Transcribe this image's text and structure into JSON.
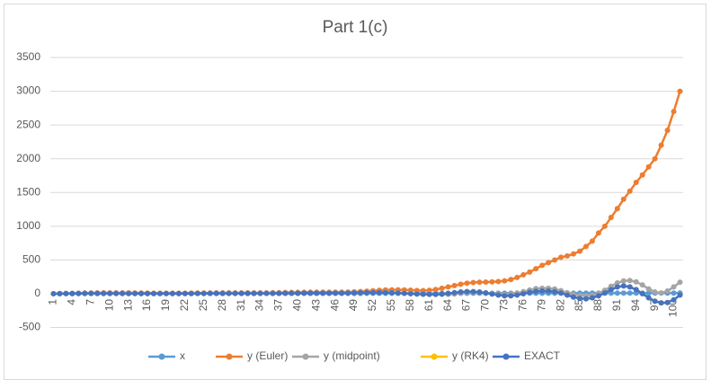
{
  "chart_data": {
    "type": "line",
    "title": "Part 1(c)",
    "categories": [
      1,
      null,
      null,
      4,
      null,
      null,
      7,
      null,
      null,
      10,
      null,
      null,
      13,
      null,
      null,
      16,
      null,
      null,
      19,
      null,
      null,
      22,
      null,
      null,
      25,
      null,
      null,
      28,
      null,
      null,
      31,
      null,
      null,
      34,
      null,
      null,
      37,
      null,
      null,
      40,
      null,
      null,
      43,
      null,
      null,
      46,
      null,
      null,
      49,
      null,
      null,
      52,
      null,
      null,
      55,
      null,
      null,
      58,
      null,
      null,
      61,
      null,
      null,
      64,
      null,
      null,
      67,
      null,
      null,
      70,
      null,
      null,
      73,
      null,
      null,
      76,
      null,
      null,
      79,
      null,
      null,
      82,
      null,
      null,
      85,
      null,
      null,
      88,
      null,
      null,
      91,
      null,
      null,
      94,
      null,
      null,
      97,
      null,
      null,
      100,
      null
    ],
    "ylim": [
      -500,
      3500
    ],
    "yticks": [
      -500,
      0,
      500,
      1000,
      1500,
      2000,
      2500,
      3000,
      3500
    ],
    "grid": true,
    "series": [
      {
        "name": "x",
        "color": "#5b9bd5",
        "values": [
          0,
          0.1,
          0.2,
          0.3,
          0.4,
          0.5,
          0.6,
          0.7,
          0.8,
          0.9,
          1,
          1.1,
          1.2,
          1.3,
          1.4,
          1.5,
          1.6,
          1.7,
          1.8,
          1.9,
          2,
          2.1,
          2.2,
          2.3,
          2.4,
          2.5,
          2.6,
          2.7,
          2.8,
          2.9,
          3,
          3.1,
          3.2,
          3.3,
          3.4,
          3.5,
          3.6,
          3.7,
          3.8,
          3.9,
          4,
          4.1,
          4.2,
          4.3,
          4.4,
          4.5,
          4.6,
          4.7,
          4.8,
          4.9,
          5,
          5.1,
          5.2,
          5.3,
          5.4,
          5.5,
          5.6,
          5.7,
          5.8,
          5.9,
          6,
          6.1,
          6.2,
          6.3,
          6.4,
          6.5,
          6.6,
          6.7,
          6.8,
          6.9,
          7,
          7.1,
          7.2,
          7.3,
          7.4,
          7.5,
          7.6,
          7.7,
          7.8,
          7.9,
          8,
          8.1,
          8.2,
          8.3,
          8.4,
          8.5,
          8.6,
          8.7,
          8.8,
          8.9,
          9,
          9.1,
          9.2,
          9.3,
          9.4,
          9.5,
          9.6,
          9.7,
          9.8,
          9.9,
          10
        ]
      },
      {
        "name": "y (Euler)",
        "color": "#ed7d31",
        "values": [
          0,
          2,
          4,
          6,
          8,
          10,
          11,
          12,
          12,
          12,
          12,
          12,
          12,
          11,
          10,
          9,
          8,
          8,
          8,
          8,
          8,
          8,
          9,
          10,
          10,
          11,
          12,
          12,
          12,
          12,
          12,
          12,
          12,
          12,
          13,
          14,
          15,
          17,
          19,
          20,
          21,
          22,
          22,
          22,
          22,
          22,
          22,
          24,
          28,
          32,
          38,
          44,
          50,
          55,
          58,
          58,
          56,
          52,
          48,
          46,
          50,
          62,
          80,
          100,
          120,
          140,
          155,
          165,
          170,
          172,
          175,
          180,
          190,
          210,
          240,
          280,
          320,
          370,
          420,
          460,
          500,
          540,
          560,
          590,
          630,
          700,
          780,
          900,
          1000,
          1130,
          1260,
          1400,
          1520,
          1650,
          1760,
          1880,
          2000,
          2200,
          2420,
          2700,
          3000
        ]
      },
      {
        "name": "y (midpoint)",
        "color": "#a5a5a5",
        "values": [
          0,
          1,
          2,
          3,
          4,
          5,
          5,
          5,
          5,
          5,
          5,
          5,
          4,
          4,
          3,
          3,
          2,
          2,
          2,
          2,
          2,
          2,
          3,
          4,
          4,
          5,
          5,
          5,
          5,
          5,
          5,
          5,
          5,
          5,
          5,
          6,
          6,
          7,
          8,
          8,
          9,
          9,
          9,
          9,
          9,
          9,
          9,
          10,
          12,
          14,
          16,
          18,
          20,
          20,
          18,
          15,
          10,
          5,
          0,
          -2,
          0,
          -5,
          -10,
          -10,
          -5,
          5,
          15,
          20,
          20,
          15,
          5,
          -5,
          -10,
          -5,
          10,
          30,
          55,
          75,
          80,
          80,
          70,
          45,
          15,
          -10,
          -25,
          -30,
          -20,
          5,
          50,
          110,
          160,
          190,
          195,
          175,
          130,
          70,
          25,
          10,
          40,
          100,
          170
        ]
      },
      {
        "name": "y (RK4)",
        "color": "#ffc000",
        "values": [
          0,
          1,
          2,
          3,
          4,
          5,
          5,
          5,
          5,
          5,
          5,
          5,
          4,
          4,
          3,
          3,
          2,
          2,
          2,
          2,
          2,
          2,
          3,
          4,
          4,
          5,
          5,
          5,
          5,
          5,
          5,
          5,
          5,
          5,
          5,
          6,
          6,
          7,
          8,
          8,
          9,
          9,
          9,
          9,
          9,
          9,
          9,
          10,
          12,
          14,
          15,
          16,
          17,
          16,
          14,
          10,
          5,
          0,
          -5,
          -8,
          -10,
          -10,
          -5,
          5,
          15,
          25,
          30,
          30,
          25,
          10,
          -5,
          -20,
          -30,
          -30,
          -20,
          0,
          20,
          35,
          40,
          40,
          30,
          10,
          -20,
          -50,
          -70,
          -75,
          -60,
          -30,
          10,
          60,
          100,
          115,
          100,
          60,
          0,
          -60,
          -110,
          -135,
          -130,
          -90,
          -20
        ]
      },
      {
        "name": "EXACT",
        "color": "#4472c4",
        "values": [
          0,
          1,
          2,
          3,
          4,
          5,
          5,
          5,
          5,
          5,
          5,
          5,
          4,
          4,
          3,
          3,
          2,
          2,
          2,
          2,
          2,
          2,
          3,
          4,
          4,
          5,
          5,
          5,
          5,
          5,
          5,
          5,
          5,
          5,
          5,
          6,
          6,
          7,
          8,
          8,
          9,
          9,
          9,
          9,
          9,
          9,
          9,
          10,
          12,
          14,
          15,
          16,
          17,
          16,
          14,
          10,
          5,
          0,
          -5,
          -8,
          -10,
          -10,
          -5,
          5,
          15,
          25,
          30,
          30,
          25,
          10,
          -5,
          -20,
          -30,
          -30,
          -20,
          0,
          20,
          35,
          40,
          40,
          30,
          10,
          -20,
          -50,
          -70,
          -75,
          -60,
          -30,
          10,
          60,
          100,
          115,
          100,
          60,
          0,
          -60,
          -110,
          -135,
          -130,
          -90,
          -20
        ]
      }
    ]
  }
}
